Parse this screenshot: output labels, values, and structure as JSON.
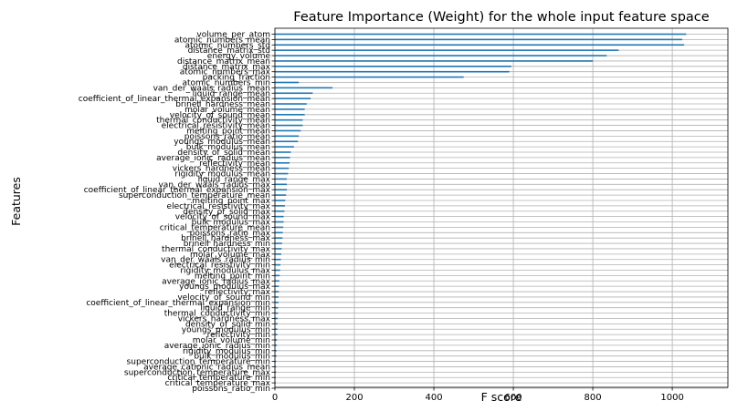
{
  "chart_data": {
    "type": "bar",
    "orientation": "horizontal",
    "title": "Feature Importance (Weight) for the whole input feature space",
    "xlabel": "F score",
    "ylabel": "Features",
    "xlim": [
      0,
      1140
    ],
    "xticks": [
      0,
      200,
      400,
      600,
      800,
      1000
    ],
    "grid": true,
    "bar_color": "#1f77b4",
    "categories": [
      "volume_per_atom",
      "atomic_numbers_mean",
      "atomic_numbers_std",
      "distance_matrix_std",
      "energy_volume",
      "distance_matrix_mean",
      "distance_matrix_max",
      "atomic_numbers_max",
      "packing_fraction",
      "atomic_numbers_min",
      "van_der_waals_radius_mean",
      "liquid_range_mean",
      "coefficient_of_linear_thermal_expansion_mean",
      "brinell_hardness_mean",
      "molar_volume_mean",
      "velocity_of_sound_mean",
      "thermal_conductivity_mean",
      "electrical_resistivity_mean",
      "melting_point_mean",
      "poissons_ratio_mean",
      "youngs_modulus_mean",
      "bulk_modulus_mean",
      "density_of_solid_mean",
      "average_ionic_radius_mean",
      "reflectivity_mean",
      "vickers_hardness_mean",
      "rigidity_modulus_mean",
      "liquid_range_max",
      "van_der_waals_radius_max",
      "coefficient_of_linear_thermal_expansion_max",
      "superconduction_temperature_mean",
      "melting_point_max",
      "electrical_resistivity_max",
      "density_of_solid_max",
      "velocity_of_sound_max",
      "bulk_modulus_max",
      "critical_temperature_mean",
      "poissons_ratio_max",
      "brinell_hardness_max",
      "brinell_hardness_min",
      "thermal_conductivity_max",
      "molar_volume_max",
      "van_der_waals_radius_min",
      "electrical_resistivity_min",
      "rigidity_modulus_max",
      "melting_point_min",
      "average_ionic_radius_max",
      "youngs_modulus_max",
      "reflectivity_max",
      "velocity_of_sound_min",
      "coefficient_of_linear_thermal_expansion_min",
      "liquid_range_min",
      "thermal_conductivity_min",
      "vickers_hardness_max",
      "density_of_solid_min",
      "youngs_modulus_min",
      "reflectivity_min",
      "molar_volume_min",
      "average_ionic_radius_min",
      "rigidity_modulus_min",
      "bulk_modulus_min",
      "superconduction_temperature_min",
      "average_cationic_radius_mean",
      "superconduction_temperature_max",
      "critical_temperature_min",
      "critical_temperature_max",
      "poissons_ratio_min"
    ],
    "values": [
      1035,
      1025,
      1030,
      865,
      835,
      800,
      595,
      590,
      475,
      60,
      145,
      95,
      90,
      80,
      75,
      75,
      70,
      70,
      65,
      60,
      58,
      48,
      40,
      38,
      37,
      35,
      33,
      30,
      30,
      30,
      28,
      26,
      25,
      24,
      22,
      22,
      21,
      20,
      19,
      18,
      17,
      16,
      15,
      14,
      13,
      12,
      11,
      10,
      10,
      9,
      9,
      8,
      8,
      7,
      7,
      6,
      6,
      5,
      5,
      4,
      4,
      3,
      3,
      3,
      2,
      2,
      1
    ]
  }
}
